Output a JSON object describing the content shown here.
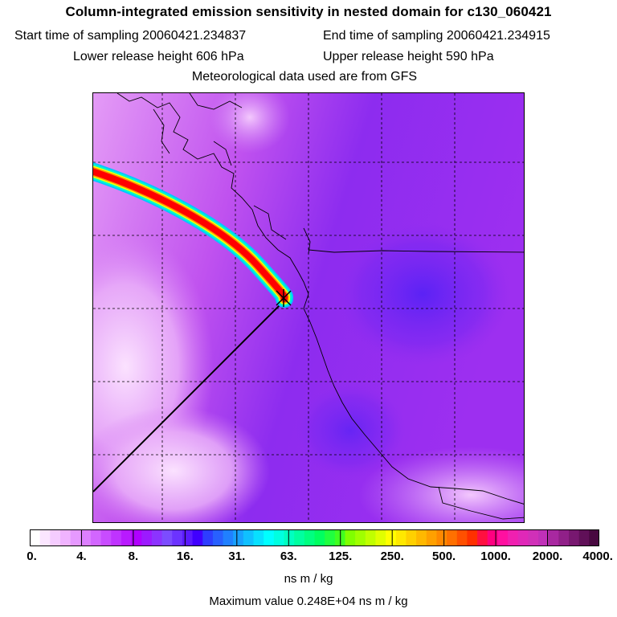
{
  "header": {
    "title": "Column-integrated emission sensitivity in nested domain for c130_060421",
    "start_time": "Start time of sampling 20060421.234837",
    "end_time": "End time of sampling 20060421.234915",
    "lower_release": "Lower release height  606 hPa",
    "upper_release": "Upper release height  590 hPa",
    "met_data": "Meteorological data used are from GFS"
  },
  "map": {
    "description_icon": "release-point-cross-icon",
    "plume_colors": [
      "#00c8ff",
      "#00ffc8",
      "#ffff00",
      "#ff8c00",
      "#ff0000"
    ]
  },
  "colorbar": {
    "labels": [
      "0.",
      "4.",
      "8.",
      "16.",
      "31.",
      "63.",
      "125.",
      "250.",
      "500.",
      "1000.",
      "2000.",
      "4000."
    ],
    "colors": [
      "#ffffff",
      "#fbe6ff",
      "#f5ccff",
      "#f0b3ff",
      "#e699ff",
      "#dc7fff",
      "#d266ff",
      "#c84cff",
      "#bf33ff",
      "#b81aff",
      "#b000ff",
      "#9c1aff",
      "#8c33ff",
      "#7c4cff",
      "#6c33ff",
      "#5a1aff",
      "#4000ff",
      "#2e3dff",
      "#2860ff",
      "#2080ff",
      "#18a0ff",
      "#10c0ff",
      "#08e0ff",
      "#00ffff",
      "#00ffe0",
      "#00ffc0",
      "#00ffa0",
      "#00ff80",
      "#00ff60",
      "#20ff40",
      "#40ff20",
      "#80ff00",
      "#a0ff00",
      "#c0ff00",
      "#e0ff00",
      "#ffff00",
      "#ffe800",
      "#ffd000",
      "#ffb800",
      "#ffa000",
      "#ff8800",
      "#ff7000",
      "#ff5000",
      "#ff3000",
      "#ff1040",
      "#ff0080",
      "#ff10a0",
      "#f020b0",
      "#e028b8",
      "#d030b8",
      "#c030b8",
      "#a828a0",
      "#902088",
      "#781870",
      "#601058",
      "#480840"
    ],
    "units": "ns m / kg",
    "max_value": "Maximum value  0.248E+04 ns m / kg"
  }
}
